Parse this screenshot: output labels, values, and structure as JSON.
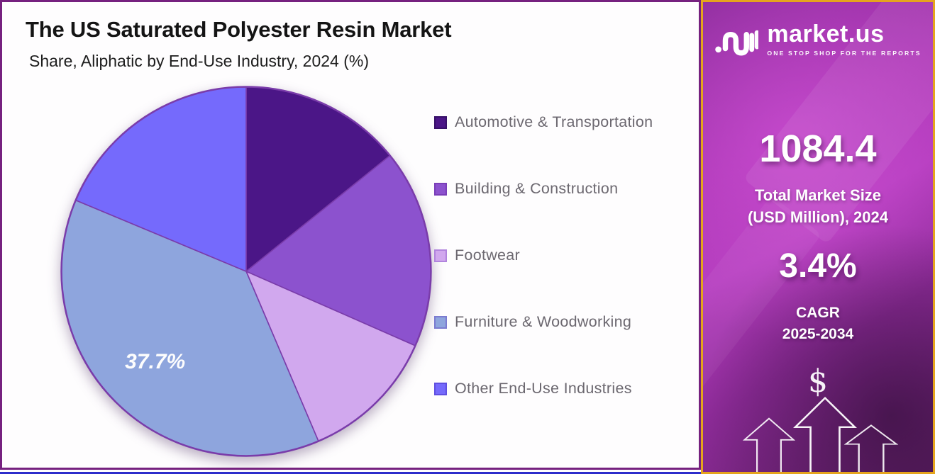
{
  "page": {
    "title": "The US Saturated Polyester Resin Market",
    "subtitle": "Share, Aliphatic by End-Use Industry, 2024 (%)"
  },
  "chart_data": {
    "type": "pie",
    "title": "The US Saturated Polyester Resin Market",
    "subtitle": "Share, Aliphatic by End-Use Industry, 2024 (%)",
    "unit": "%",
    "start_angle_deg": 0,
    "direction": "clockwise",
    "legend_position": "right",
    "values_note": "Only the 37.7% slice is labeled on the chart; other values estimated from slice angles",
    "stroke_color": "#7a3caa",
    "slices": [
      {
        "label": "Automotive & Transportation",
        "value": 14.2,
        "color": "#4b1687",
        "swatch_border": "#371068",
        "display_label": ""
      },
      {
        "label": "Building & Construction",
        "value": 17.4,
        "color": "#8c52ce",
        "swatch_border": "#7a3eb8",
        "display_label": ""
      },
      {
        "label": "Footwear",
        "value": 12.0,
        "color": "#d1a8ee",
        "swatch_border": "#b184dd",
        "display_label": ""
      },
      {
        "label": "Furniture & Woodworking",
        "value": 37.7,
        "color": "#8ea5dd",
        "swatch_border": "#7b7bd0",
        "display_label": "37.7%"
      },
      {
        "label": "Other End-Use Industries",
        "value": 18.7,
        "color": "#756afc",
        "swatch_border": "#5f4fe0",
        "display_label": ""
      }
    ]
  },
  "sidebar": {
    "brand_name": "market.us",
    "brand_tagline": "ONE STOP SHOP FOR THE REPORTS",
    "market_size_value": "1084.4",
    "market_size_label1": "Total Market Size",
    "market_size_label2": "(USD Million), 2024",
    "cagr_value": "3.4%",
    "cagr_label1": "CAGR",
    "cagr_label2": "2025-2034",
    "dollar_symbol": "$",
    "colors": {
      "border_gold": "#e5a41d",
      "background_purple": "#a735b2",
      "main_border_purple": "#76217f",
      "bottom_strip_blue": "#2d2dcb"
    }
  }
}
